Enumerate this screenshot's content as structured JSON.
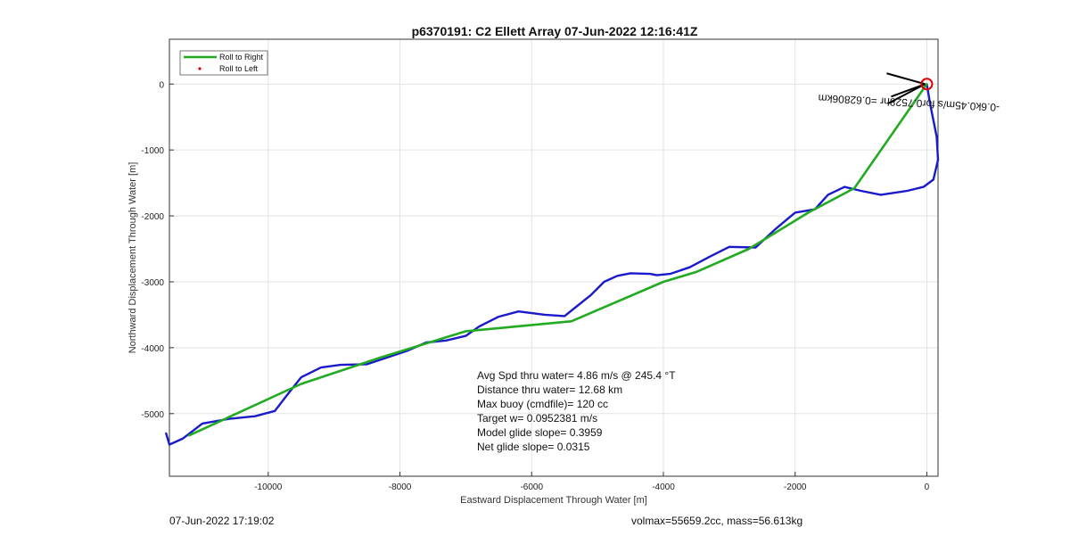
{
  "chart_data": {
    "type": "line",
    "title": "p6370191: C2 Ellett Array 07-Jun-2022 12:16:41Z",
    "xlabel": "Eastward Displacement Through Water [m]",
    "ylabel": "Northward Displacement Through Water [m]",
    "xlim": [
      -11500,
      170
    ],
    "ylim": [
      -5950,
      680
    ],
    "xticks": [
      -10000,
      -8000,
      -6000,
      -4000,
      -2000,
      0
    ],
    "yticks": [
      -5000,
      -4000,
      -3000,
      -2000,
      -1000,
      0
    ],
    "xtick_labels": [
      "-10000",
      "-8000",
      "-6000",
      "-4000",
      "-2000",
      "0"
    ],
    "ytick_labels": [
      "-5000",
      "-4000",
      "-3000",
      "-2000",
      "-1000",
      "0"
    ],
    "grid": true,
    "legend_placement": "top-left",
    "legend": [
      {
        "label": "Roll to Right",
        "color": "#22aa22",
        "style": "line"
      },
      {
        "label": "Roll to Left",
        "color": "#dd0000",
        "style": "dot"
      }
    ],
    "series": [
      {
        "name": "Roll to Right",
        "color": "#22aa22",
        "x": [
          0,
          -1100,
          -1800,
          -2700,
          -3500,
          -4000,
          -5400,
          -7000,
          -8300,
          -9500,
          -11200
        ],
        "y": [
          0,
          -1580,
          -1950,
          -2500,
          -2850,
          -3000,
          -3600,
          -3750,
          -4150,
          -4550,
          -5330
        ]
      },
      {
        "name": "",
        "color": "#1a1acc",
        "x": [
          0,
          50,
          150,
          170,
          100,
          -50,
          -300,
          -700,
          -1000,
          -1250,
          -1500,
          -1700,
          -2000,
          -2300,
          -2600,
          -3000,
          -3300,
          -3600,
          -3900,
          -4100,
          -4200,
          -4500,
          -4700,
          -4900,
          -5100,
          -5500,
          -5800,
          -6200,
          -6500,
          -6800,
          -7000,
          -7300,
          -7600,
          -7900,
          -8200,
          -8500,
          -8900,
          -9200,
          -9500,
          -9700,
          -9900,
          -10200,
          -10600,
          -11000,
          -11300,
          -11500,
          -11550
        ],
        "y": [
          0,
          -300,
          -800,
          -1150,
          -1450,
          -1560,
          -1620,
          -1680,
          -1620,
          -1560,
          -1680,
          -1900,
          -1950,
          -2200,
          -2480,
          -2470,
          -2620,
          -2780,
          -2880,
          -2900,
          -2880,
          -2870,
          -2910,
          -3000,
          -3200,
          -3520,
          -3500,
          -3450,
          -3530,
          -3680,
          -3820,
          -3890,
          -3920,
          -4050,
          -4150,
          -4250,
          -4260,
          -4300,
          -4450,
          -4700,
          -4960,
          -5040,
          -5080,
          -5150,
          -5380,
          -5470,
          -5300
        ]
      }
    ],
    "markers": [
      {
        "shape": "circle",
        "color": "#dd0000",
        "x": 0,
        "y": 0
      }
    ],
    "annotations": [
      {
        "text": "-0.6k0.45m/s for0.7528hr =0.62806km",
        "x": -270,
        "y": -230,
        "rotation": 183
      }
    ],
    "stats": [
      "Avg Spd thru water=  4.86 m/s @ 245.4 °T",
      "Distance thru water= 12.68 km",
      "Max buoy (cmdfile)= 120 cc",
      "Target w= 0.0952381 m/s",
      "Model glide slope= 0.3959",
      "Net glide slope= 0.0315"
    ]
  },
  "footer": {
    "timestamp": "07-Jun-2022 17:19:02",
    "info": "volmax=55659.2cc, mass=56.613kg"
  }
}
